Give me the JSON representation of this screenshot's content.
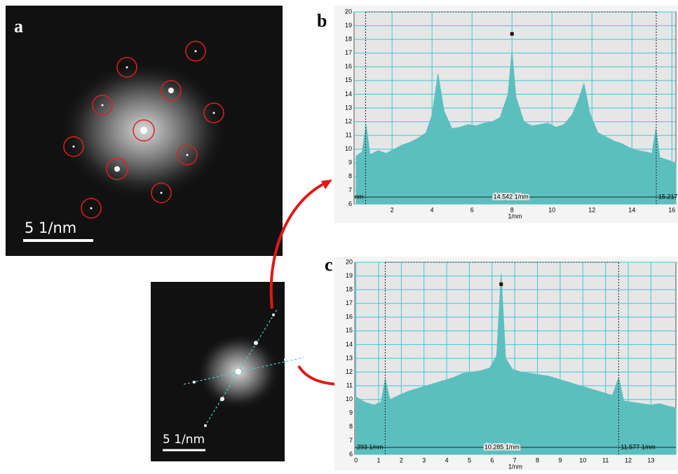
{
  "figure": {
    "panel_labels": [
      "a",
      "b",
      "c"
    ],
    "scale_bars": [
      "5 1/nm",
      "5 1/nm"
    ]
  },
  "chart_data": [
    {
      "type": "area",
      "x_label": "1/nm",
      "color": "#5cbfbf",
      "x": [
        0.2,
        0.5,
        0.7,
        0.9,
        1.3,
        1.7,
        2.1,
        2.5,
        2.9,
        3.3,
        3.7,
        4.0,
        4.3,
        4.6,
        5.0,
        5.4,
        5.8,
        6.2,
        6.6,
        7.0,
        7.4,
        7.8,
        8.0,
        8.2,
        8.6,
        9.0,
        9.4,
        9.8,
        10.2,
        10.6,
        11.0,
        11.3,
        11.6,
        11.9,
        12.3,
        12.7,
        13.1,
        13.5,
        13.9,
        14.3,
        14.7,
        15.0,
        15.2,
        15.4,
        15.8,
        16.2
      ],
      "values": [
        9.5,
        9.8,
        11.8,
        9.6,
        9.9,
        9.7,
        10.0,
        10.3,
        10.5,
        10.8,
        11.2,
        12.5,
        15.5,
        12.8,
        11.5,
        11.6,
        11.8,
        11.7,
        11.9,
        12.0,
        12.3,
        14.0,
        17.2,
        13.8,
        12.0,
        11.7,
        11.8,
        11.9,
        11.6,
        11.8,
        12.5,
        13.5,
        14.8,
        12.6,
        11.2,
        10.9,
        10.6,
        10.4,
        10.1,
        9.9,
        9.8,
        9.7,
        11.5,
        9.4,
        9.2,
        9.0
      ],
      "xlim": [
        0.1,
        16.2
      ],
      "ylim": [
        6,
        20
      ],
      "xticks": [
        2,
        4,
        6,
        8,
        10,
        12,
        14,
        16
      ],
      "yticks": [
        6,
        7,
        8,
        9,
        10,
        11,
        12,
        13,
        14,
        15,
        16,
        17,
        18,
        19,
        20
      ],
      "grid": true,
      "cursor_x": [
        0.675,
        15.217
      ],
      "peak_marker": [
        8.0,
        18.4
      ],
      "annotations": [
        "nm",
        "14.542 1/nm",
        "15.217"
      ]
    },
    {
      "type": "area",
      "x_label": "1/nm",
      "color": "#5cbfbf",
      "x": [
        0,
        0.4,
        0.8,
        1.1,
        1.29,
        1.5,
        1.9,
        2.3,
        2.7,
        3.1,
        3.5,
        3.9,
        4.3,
        4.7,
        5.1,
        5.5,
        5.9,
        6.2,
        6.4,
        6.6,
        6.9,
        7.3,
        7.7,
        8.1,
        8.5,
        8.9,
        9.3,
        9.7,
        10.1,
        10.5,
        10.9,
        11.3,
        11.58,
        11.8,
        12.2,
        12.6,
        13.0,
        13.4,
        13.8,
        14.1
      ],
      "values": [
        10.2,
        9.8,
        9.6,
        9.8,
        11.5,
        10.0,
        10.3,
        10.6,
        10.8,
        11.0,
        11.2,
        11.4,
        11.6,
        11.9,
        12.0,
        12.1,
        12.3,
        13.2,
        19.2,
        13.0,
        12.2,
        12.0,
        11.9,
        11.8,
        11.7,
        11.5,
        11.3,
        11.1,
        10.9,
        10.7,
        10.5,
        10.3,
        11.6,
        9.9,
        9.8,
        9.7,
        9.6,
        9.7,
        9.5,
        9.4
      ],
      "xlim": [
        -0.05,
        14.1
      ],
      "ylim": [
        6,
        20
      ],
      "xticks": [
        0,
        1,
        2,
        3,
        4,
        5,
        6,
        7,
        8,
        9,
        10,
        11,
        12,
        13
      ],
      "yticks": [
        6,
        7,
        8,
        9,
        10,
        11,
        12,
        13,
        14,
        15,
        16,
        17,
        18,
        19,
        20
      ],
      "grid": true,
      "cursor_x": [
        1.292,
        11.577
      ],
      "peak_marker": [
        6.4,
        18.4
      ],
      "annotations": [
        "293 1/nm",
        "10.285 1/nm",
        "11.577 1/nm"
      ]
    }
  ]
}
